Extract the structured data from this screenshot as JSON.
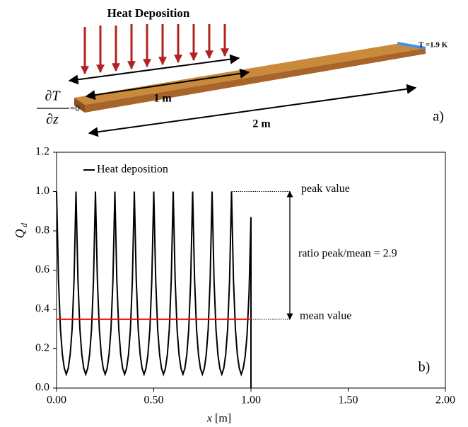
{
  "diagram": {
    "title": "Heat Deposition",
    "temperature": "T =1.9 K",
    "short_length": "1 m",
    "long_length": "2 m",
    "panel": "a)",
    "bc_numerator": "∂T",
    "bc_denominator": "∂z",
    "bc_rhs": "=0"
  },
  "chart_data": {
    "type": "line",
    "panel": "b)",
    "xlabel": "x",
    "xlabel_unit": "[m]",
    "ylabel": "Q",
    "ylabel_sub": "d",
    "xlim": [
      0,
      2
    ],
    "ylim": [
      0,
      1.2
    ],
    "xticks": [
      {
        "value": 0,
        "label": "0.00"
      },
      {
        "value": 0.5,
        "label": "0.50"
      },
      {
        "value": 1,
        "label": "1.00"
      },
      {
        "value": 1.5,
        "label": "1.50"
      },
      {
        "value": 2,
        "label": "2.00"
      }
    ],
    "yticks": [
      {
        "value": 0,
        "label": "0.0"
      },
      {
        "value": 0.2,
        "label": "0.2"
      },
      {
        "value": 0.4,
        "label": "0.4"
      },
      {
        "value": 0.6,
        "label": "0.6"
      },
      {
        "value": 0.8,
        "label": "0.8"
      },
      {
        "value": 1,
        "label": "1.0"
      },
      {
        "value": 1.2,
        "label": "1.2"
      }
    ],
    "series": [
      {
        "name": "Heat deposition",
        "color": "#000000",
        "x": [
          0,
          0.01,
          0.02,
          0.03,
          0.04,
          0.05,
          0.06,
          0.07,
          0.08,
          0.09,
          0.1,
          0.11,
          0.12,
          0.13,
          0.14,
          0.15,
          0.16,
          0.17,
          0.18,
          0.19,
          0.2,
          0.21,
          0.22,
          0.23,
          0.24,
          0.25,
          0.26,
          0.27,
          0.28,
          0.29,
          0.3,
          0.31,
          0.32,
          0.33,
          0.34,
          0.35,
          0.36,
          0.37,
          0.38,
          0.39,
          0.4,
          0.41,
          0.42,
          0.43,
          0.44,
          0.45,
          0.46,
          0.47,
          0.48,
          0.49,
          0.5,
          0.51,
          0.52,
          0.53,
          0.54,
          0.55,
          0.56,
          0.57,
          0.58,
          0.59,
          0.6,
          0.61,
          0.62,
          0.63,
          0.64,
          0.65,
          0.66,
          0.67,
          0.68,
          0.69,
          0.7,
          0.71,
          0.72,
          0.73,
          0.74,
          0.75,
          0.76,
          0.77,
          0.78,
          0.79,
          0.8,
          0.81,
          0.82,
          0.83,
          0.84,
          0.85,
          0.86,
          0.87,
          0.88,
          0.89,
          0.9,
          0.91,
          0.92,
          0.93,
          0.94,
          0.95,
          0.96,
          0.97,
          0.98,
          0.99,
          1,
          1
        ],
        "values": [
          1,
          0.55,
          0.3,
          0.17,
          0.1,
          0.07,
          0.1,
          0.17,
          0.3,
          0.55,
          1,
          0.55,
          0.3,
          0.17,
          0.1,
          0.07,
          0.1,
          0.17,
          0.3,
          0.55,
          1,
          0.55,
          0.3,
          0.17,
          0.1,
          0.07,
          0.1,
          0.17,
          0.3,
          0.55,
          1,
          0.55,
          0.3,
          0.17,
          0.1,
          0.07,
          0.1,
          0.17,
          0.3,
          0.55,
          1,
          0.55,
          0.3,
          0.17,
          0.1,
          0.07,
          0.1,
          0.17,
          0.3,
          0.55,
          1,
          0.55,
          0.3,
          0.17,
          0.1,
          0.07,
          0.1,
          0.17,
          0.3,
          0.55,
          1,
          0.55,
          0.3,
          0.17,
          0.1,
          0.07,
          0.1,
          0.17,
          0.3,
          0.55,
          1,
          0.55,
          0.3,
          0.17,
          0.1,
          0.07,
          0.1,
          0.17,
          0.3,
          0.55,
          1,
          0.55,
          0.3,
          0.17,
          0.1,
          0.07,
          0.1,
          0.17,
          0.3,
          0.55,
          1,
          0.55,
          0.3,
          0.17,
          0.1,
          0.07,
          0.1,
          0.16,
          0.27,
          0.48,
          0.87,
          0
        ]
      }
    ],
    "mean_line": {
      "label": "mean value",
      "color": "#ff0000",
      "value": 0.35,
      "x": [
        0,
        1
      ]
    },
    "peak_annotation": {
      "label": "peak value",
      "value": 1,
      "x": [
        0.9,
        1.2
      ]
    },
    "ratio_annotation": {
      "label": "ratio peak/mean = 2.9",
      "x": 1.2
    }
  }
}
